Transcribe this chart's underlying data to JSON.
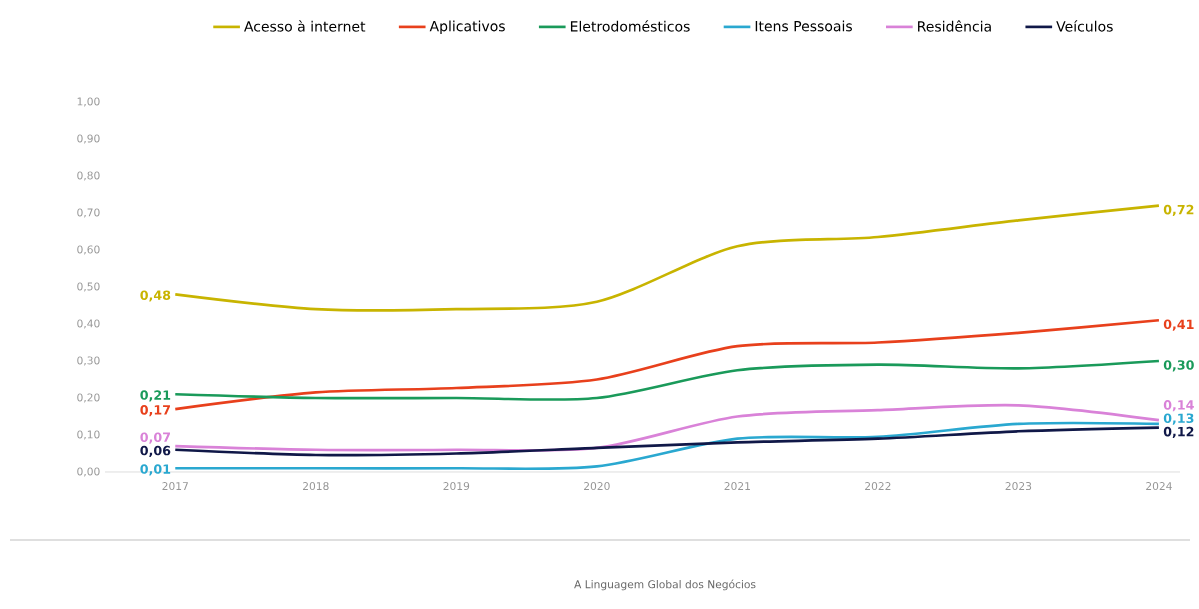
{
  "chart_data": {
    "type": "line",
    "categories": [
      "2017",
      "2018",
      "2019",
      "2020",
      "2021",
      "2022",
      "2023",
      "2024"
    ],
    "ylim": [
      0,
      1
    ],
    "yticks": [
      {
        "value": 0,
        "label": "0,00"
      },
      {
        "value": 0.1,
        "label": "0,10"
      },
      {
        "value": 0.2,
        "label": "0,20"
      },
      {
        "value": 0.3,
        "label": "0,30"
      },
      {
        "value": 0.4,
        "label": "0,40"
      },
      {
        "value": 0.5,
        "label": "0,50"
      },
      {
        "value": 0.6,
        "label": "0,60"
      },
      {
        "value": 0.7,
        "label": "0,70"
      },
      {
        "value": 0.8,
        "label": "0,80"
      },
      {
        "value": 0.9,
        "label": "0,90"
      },
      {
        "value": 1,
        "label": "1,00"
      }
    ],
    "series": [
      {
        "name": "Acesso à internet",
        "color": "#c8b400",
        "values": [
          0.48,
          0.44,
          0.44,
          0.46,
          0.61,
          0.635,
          0.68,
          0.72
        ],
        "value_labels": [
          "0,48",
          null,
          null,
          null,
          null,
          null,
          null,
          "0,72"
        ]
      },
      {
        "name": "Aplicativos",
        "color": "#e8401c",
        "values": [
          0.17,
          0.215,
          0.227,
          0.25,
          0.34,
          0.35,
          0.376,
          0.41
        ],
        "value_labels": [
          "0,17",
          null,
          null,
          null,
          null,
          null,
          null,
          "0,41"
        ]
      },
      {
        "name": "Eletrodomésticos",
        "color": "#1a9a5a",
        "values": [
          0.21,
          0.2,
          0.2,
          0.2,
          0.275,
          0.29,
          0.28,
          0.3
        ],
        "value_labels": [
          "0,21",
          null,
          null,
          null,
          null,
          null,
          null,
          "0,30"
        ]
      },
      {
        "name": "Itens Pessoais",
        "color": "#2aa8d0",
        "values": [
          0.01,
          0.01,
          0.01,
          0.015,
          0.09,
          0.095,
          0.13,
          0.13
        ],
        "value_labels": [
          "0,01",
          null,
          null,
          null,
          null,
          null,
          null,
          "0,13"
        ]
      },
      {
        "name": "Residência",
        "color": "#d982d8",
        "values": [
          0.07,
          0.06,
          0.06,
          0.065,
          0.15,
          0.167,
          0.18,
          0.14
        ],
        "value_labels": [
          "0,07",
          null,
          null,
          null,
          null,
          null,
          null,
          "0,14"
        ]
      },
      {
        "name": "Veículos",
        "color": "#101848",
        "values": [
          0.06,
          0.046,
          0.05,
          0.065,
          0.08,
          0.09,
          0.11,
          0.12
        ],
        "value_labels": [
          "0,06",
          null,
          null,
          null,
          null,
          null,
          null,
          "0,12"
        ]
      }
    ],
    "legend": "top",
    "marker": "none",
    "annotations": [
      "A Linguagem Global dos Negócios"
    ]
  }
}
